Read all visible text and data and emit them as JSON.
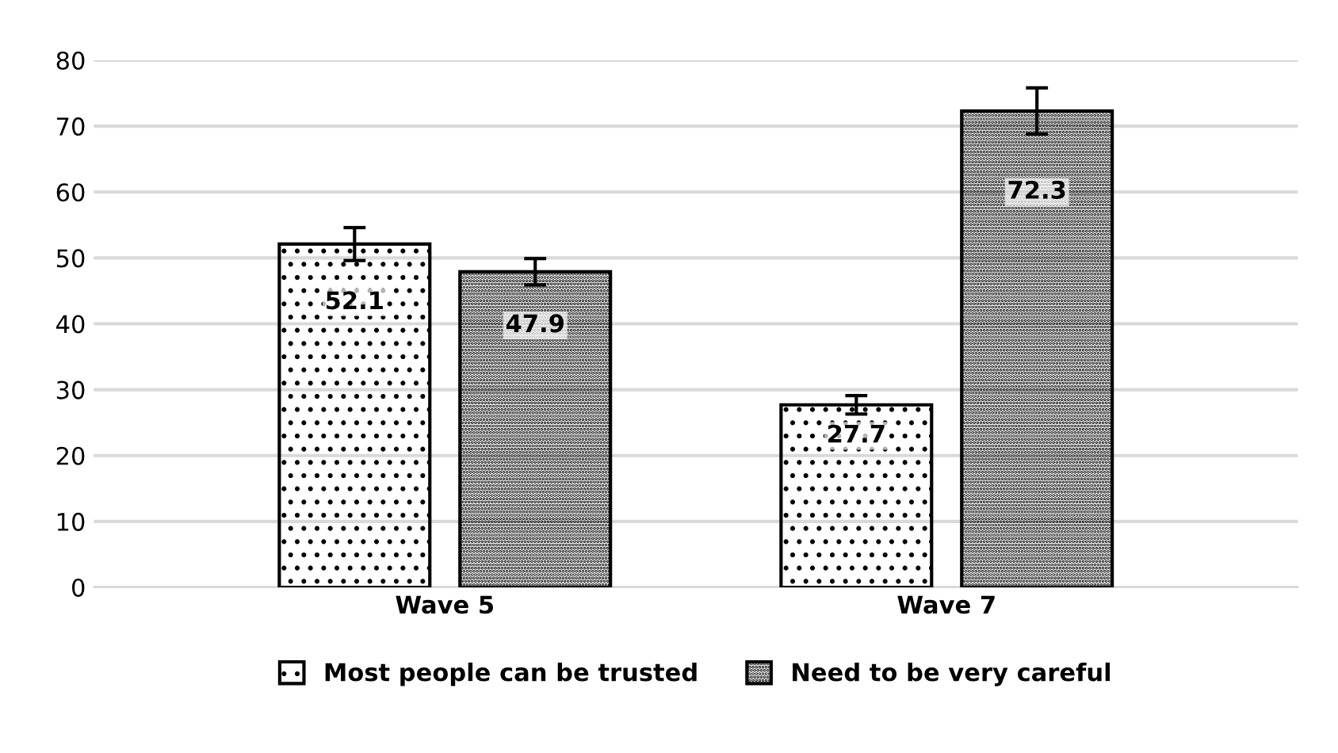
{
  "chart_data": {
    "type": "bar",
    "categories": [
      "Wave 5",
      "Wave 7"
    ],
    "series": [
      {
        "name": "Most people can be trusted",
        "color": "#000000",
        "values": [
          52.1,
          27.7
        ],
        "errors": [
          2.5,
          1.4
        ]
      },
      {
        "name": "Need to be very careful",
        "color": "#000000",
        "values": [
          47.9,
          72.3
        ],
        "errors": [
          2.0,
          3.5
        ]
      }
    ],
    "ylim": [
      0,
      80
    ],
    "yticks": [
      0,
      10,
      20,
      30,
      40,
      50,
      60,
      70,
      80
    ],
    "grid": "y",
    "legend": "bottom",
    "data_labels": true
  }
}
